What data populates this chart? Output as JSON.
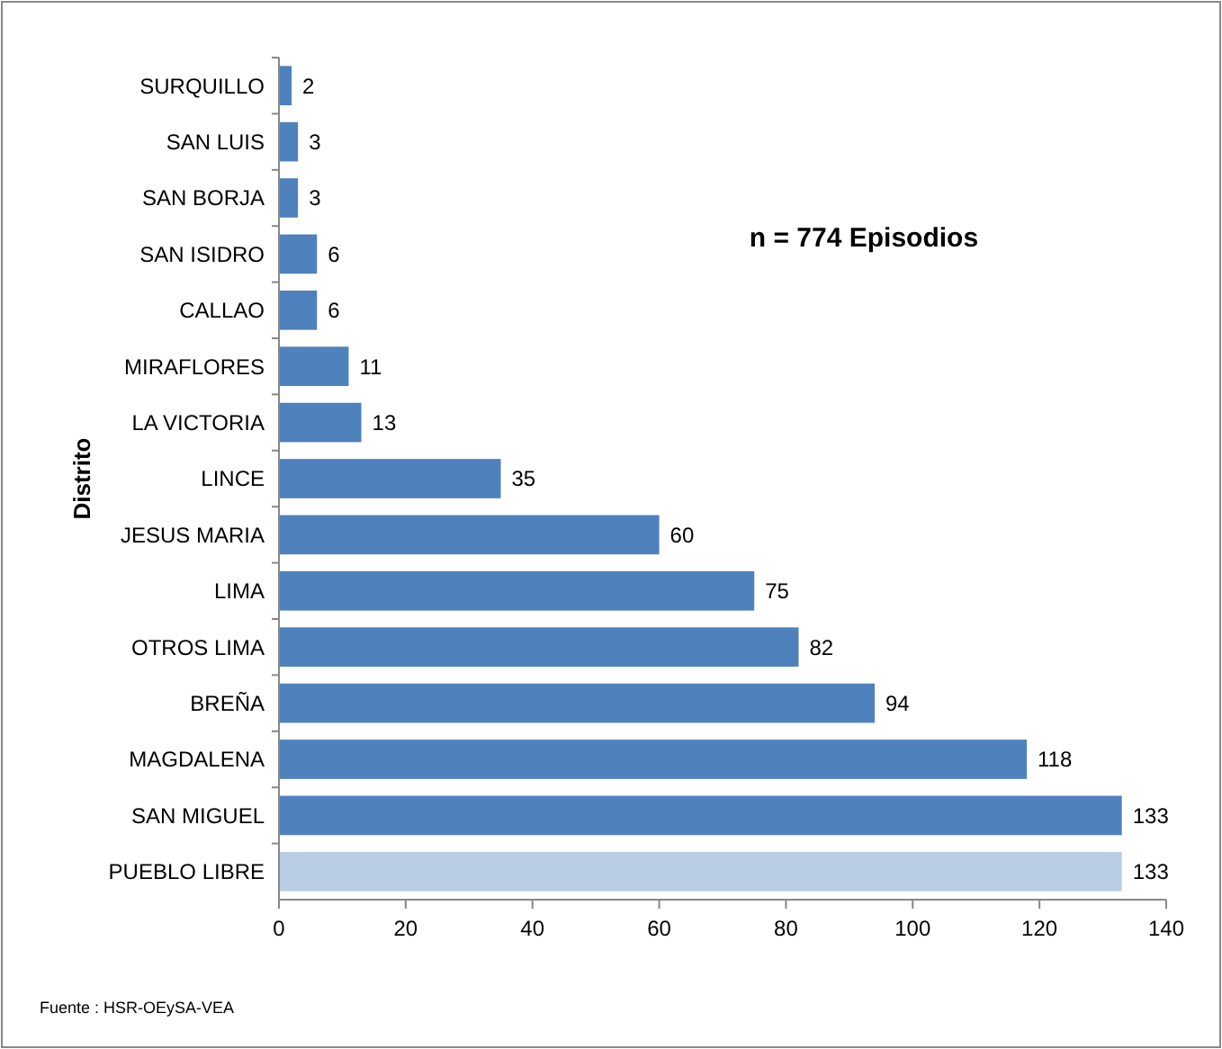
{
  "chart_data": {
    "type": "bar",
    "orientation": "horizontal",
    "ylabel": "Distrito",
    "categories": [
      "SURQUILLO",
      "SAN LUIS",
      "SAN BORJA",
      "SAN ISIDRO",
      "CALLAO",
      "MIRAFLORES",
      "LA VICTORIA",
      "LINCE",
      "JESUS MARIA",
      "LIMA",
      "OTROS LIMA",
      "BREÑA",
      "MAGDALENA",
      "SAN MIGUEL",
      "PUEBLO LIBRE"
    ],
    "values": [
      2,
      3,
      3,
      6,
      6,
      11,
      13,
      35,
      60,
      75,
      82,
      94,
      118,
      133,
      133
    ],
    "colors": [
      "#4f81bd",
      "#4f81bd",
      "#4f81bd",
      "#4f81bd",
      "#4f81bd",
      "#4f81bd",
      "#4f81bd",
      "#4f81bd",
      "#4f81bd",
      "#4f81bd",
      "#4f81bd",
      "#4f81bd",
      "#4f81bd",
      "#4f81bd",
      "#b9cde5"
    ],
    "xlim": [
      0,
      140
    ],
    "xticks": [
      0,
      20,
      40,
      60,
      80,
      100,
      120,
      140
    ],
    "data_labels": true,
    "annotations": [
      "n = 774  Episodios",
      "Fuente : HSR-OEySA-VEA"
    ]
  }
}
